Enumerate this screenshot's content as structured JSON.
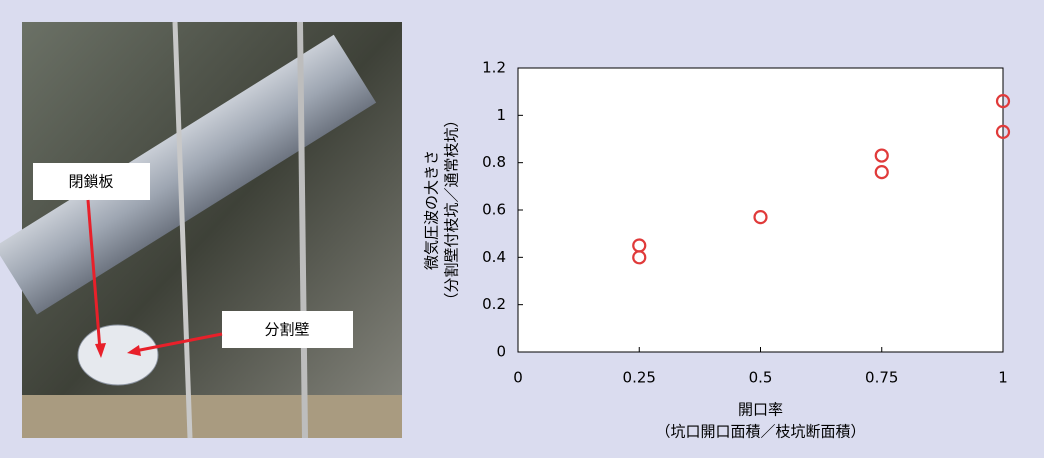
{
  "photo_labels": [
    "閉鎖板",
    "分割壁"
  ],
  "chart_data": {
    "type": "scatter",
    "xlabel": [
      "開口率",
      "（坑口開口面積／枝坑断面積）"
    ],
    "ylabel": [
      "微気圧波の大きさ",
      "（分割壁付枝坑／通常枝坑）"
    ],
    "x": [
      0.25,
      0.25,
      0.5,
      0.75,
      0.75,
      1,
      1
    ],
    "values": [
      0.45,
      0.4,
      0.57,
      0.83,
      0.76,
      1.06,
      0.93
    ],
    "color": "#e03a3a",
    "xlim": [
      0,
      1
    ],
    "xticks": [
      0,
      0.25,
      0.5,
      0.75,
      1
    ],
    "ylim": [
      0,
      1.2
    ],
    "yticks": [
      0,
      0.2,
      0.4,
      0.6,
      0.8,
      1,
      1.2
    ]
  }
}
